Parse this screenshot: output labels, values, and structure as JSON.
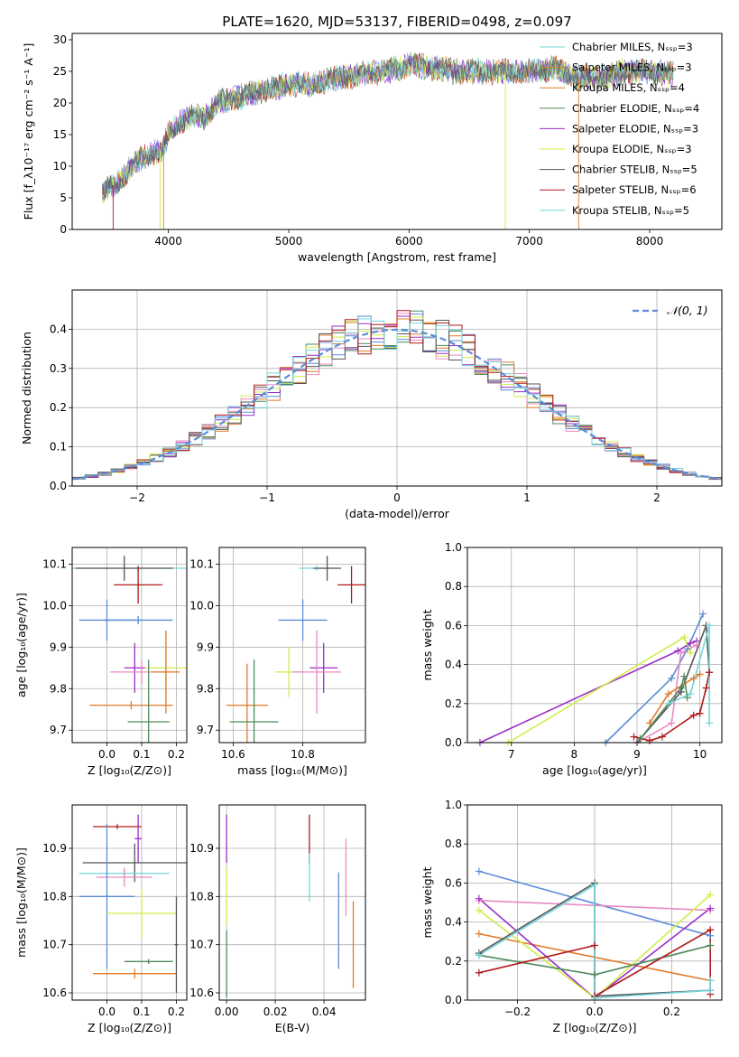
{
  "title": "PLATE=1620, MJD=53137, FIBERID=0498, z=0.097",
  "colors": {
    "blue": "#5b8bd8",
    "orange": "#e07b2a",
    "green": "#4f8a5c",
    "purple": "#9b2ec8",
    "lime": "#d0ec4a",
    "gray": "#555555",
    "red": "#b01a1a",
    "cyan": "#74d6dc",
    "pink": "#e78ac3"
  },
  "chart_data": [
    {
      "type": "line",
      "xlabel": "wavelength [Angstrom, rest frame]",
      "ylabel": "Flux [f_λ10⁻¹⁷ erg cm⁻² s⁻¹ A⁻¹]",
      "xlim": [
        3200,
        8600
      ],
      "ylim": [
        0,
        31
      ],
      "xticks": [
        "4000",
        "5000",
        "6000",
        "7000",
        "8000"
      ],
      "yticks": [
        "0",
        "5",
        "10",
        "15",
        "20",
        "25",
        "30"
      ],
      "legend_position": "top-right",
      "spectrum_envelope": {
        "x": [
          3450,
          3550,
          3650,
          3750,
          3850,
          3950,
          4000,
          4100,
          4200,
          4300,
          4400,
          4600,
          4800,
          5000,
          5200,
          5400,
          5600,
          5800,
          6000,
          6200,
          6400,
          6600,
          6800,
          7000,
          7200,
          7400,
          7600,
          7800,
          8000,
          8200
        ],
        "y": [
          6,
          7,
          9,
          11,
          12,
          12.5,
          15,
          17,
          18,
          17.5,
          20,
          21,
          22,
          23,
          23,
          24,
          24.5,
          25,
          26,
          25.5,
          25,
          25,
          25,
          25,
          25.5,
          24,
          24,
          25,
          25,
          24.5
        ]
      },
      "series": [
        {
          "name": "Chabrier MILES, N_SSP=3"
        },
        {
          "name": "Salpeter MILES, N_SSP=3"
        },
        {
          "name": "Kroupa MILES, N_SSP=4"
        },
        {
          "name": "Chabrier ELODIE, N_SSP=4"
        },
        {
          "name": "Salpeter ELODIE, N_SSP=3"
        },
        {
          "name": "Kroupa ELODIE, N_SSP=3"
        },
        {
          "name": "Chabrier STELIB, N_SSP=5"
        },
        {
          "name": "Salpeter STELIB, N_SSP=6"
        },
        {
          "name": "Kroupa STELIB, N_SSP=5"
        }
      ],
      "legend_labels": [
        "Chabrier MILES, Nₛₛₚ=3",
        "Salpeter MILES, Nₛₛₚ=3",
        "Kroupa MILES, Nₛₛₚ=4",
        "Chabrier ELODIE, Nₛₛₚ=4",
        "Salpeter ELODIE, Nₛₛₚ=3",
        "Kroupa ELODIE, Nₛₛₚ=3",
        "Chabrier STELIB, Nₛₛₚ=5",
        "Salpeter STELIB, Nₛₛₚ=6",
        "Kroupa STELIB, Nₛₛₚ=5"
      ]
    },
    {
      "type": "line",
      "xlabel": "(data-model)/error",
      "ylabel": "Normed distribution",
      "xlim": [
        -2.5,
        2.5
      ],
      "ylim": [
        0,
        0.5
      ],
      "xticks": [
        "−2",
        "−1",
        "0",
        "1",
        "2"
      ],
      "yticks": [
        "0.0",
        "0.1",
        "0.2",
        "0.3",
        "0.4"
      ],
      "grid": true,
      "legend_label": "𝒩(0, 1)",
      "gaussian": {
        "mean": 0,
        "sigma": 1
      }
    },
    {
      "type": "scatter",
      "xlabel": "Z [log₁₀(Z/Z⊙)]",
      "ylabel": "age  [log₁₀(age/yr)]",
      "xlim": [
        -0.1,
        0.23
      ],
      "ylim": [
        9.67,
        10.14
      ],
      "xticks": [
        "0.0",
        "0.1",
        "0.2"
      ],
      "yticks": [
        "9.7",
        "9.8",
        "9.9",
        "10.0",
        "10.1"
      ],
      "grid": true,
      "points": [
        {
          "x": 0.09,
          "y": 10.09,
          "xerr": 0.19,
          "yerr": 0.006,
          "color": "cyan"
        },
        {
          "x": 0.05,
          "y": 10.09,
          "xerr": 0.14,
          "yerr": 0.03,
          "color": "gray"
        },
        {
          "x": 0.09,
          "y": 10.05,
          "xerr": 0.07,
          "yerr": 0.045,
          "color": "red"
        },
        {
          "x": 0.0,
          "y": 9.965,
          "xerr": 0.08,
          "yerr": 0.05,
          "color": "blue"
        },
        {
          "x": 0.09,
          "y": 9.965,
          "xerr": 0.1,
          "yerr": 0.01,
          "color": "blue"
        },
        {
          "x": 0.08,
          "y": 9.85,
          "xerr": 0.03,
          "yerr": 0.06,
          "color": "purple"
        },
        {
          "x": 0.17,
          "y": 9.85,
          "xerr": 0.06,
          "yerr": 0.06,
          "color": "lime"
        },
        {
          "x": 0.1,
          "y": 9.84,
          "xerr": 0.09,
          "yerr": 0.03,
          "color": "pink"
        },
        {
          "x": 0.17,
          "y": 9.84,
          "xerr": 0.04,
          "yerr": 0.1,
          "color": "orange"
        },
        {
          "x": 0.07,
          "y": 9.76,
          "xerr": 0.12,
          "yerr": 0.01,
          "color": "orange"
        },
        {
          "x": 0.12,
          "y": 9.72,
          "xerr": 0.06,
          "yerr": 0.15,
          "color": "green"
        }
      ]
    },
    {
      "type": "scatter",
      "xlabel": "mass [log₁₀(M/M⊙)]",
      "xlim": [
        10.56,
        10.98
      ],
      "ylim": [
        9.67,
        10.14
      ],
      "xticks": [
        "10.6",
        "10.8"
      ],
      "yticks": [
        "9.7",
        "9.8",
        "9.9",
        "10.0",
        "10.1"
      ],
      "grid": true,
      "points": [
        {
          "x": 10.84,
          "y": 10.09,
          "xerr": 0.05,
          "yerr": 0.006,
          "color": "cyan"
        },
        {
          "x": 10.87,
          "y": 10.09,
          "xerr": 0.04,
          "yerr": 0.03,
          "color": "gray"
        },
        {
          "x": 10.94,
          "y": 10.05,
          "xerr": 0.04,
          "yerr": 0.045,
          "color": "red"
        },
        {
          "x": 10.8,
          "y": 9.965,
          "xerr": 0.07,
          "yerr": 0.05,
          "color": "blue"
        },
        {
          "x": 10.86,
          "y": 9.85,
          "xerr": 0.04,
          "yerr": 0.06,
          "color": "purple"
        },
        {
          "x": 10.76,
          "y": 9.84,
          "xerr": 0.04,
          "yerr": 0.06,
          "color": "lime"
        },
        {
          "x": 10.84,
          "y": 9.84,
          "xerr": 0.07,
          "yerr": 0.1,
          "color": "pink"
        },
        {
          "x": 10.64,
          "y": 9.76,
          "xerr": 0.06,
          "yerr": 0.1,
          "color": "orange"
        },
        {
          "x": 10.66,
          "y": 9.72,
          "xerr": 0.07,
          "yerr": 0.15,
          "color": "green"
        }
      ]
    },
    {
      "type": "line",
      "xlabel": "age  [log₁₀(age/yr)]",
      "ylabel": "mass weight",
      "xlim": [
        6.3,
        10.35
      ],
      "ylim": [
        0,
        1.0
      ],
      "xticks": [
        "7",
        "8",
        "9",
        "10"
      ],
      "yticks": [
        "0.0",
        "0.2",
        "0.4",
        "0.6",
        "0.8",
        "1.0"
      ],
      "grid": true,
      "series": [
        {
          "color": "blue",
          "x": [
            8.5,
            9.55,
            9.8,
            10.05
          ],
          "y": [
            0.0,
            0.33,
            0.48,
            0.66
          ]
        },
        {
          "color": "purple",
          "x": [
            6.5,
            9.65,
            9.85,
            9.95
          ],
          "y": [
            0.0,
            0.47,
            0.51,
            0.52
          ]
        },
        {
          "color": "lime",
          "x": [
            6.95,
            9.75,
            9.85
          ],
          "y": [
            0.0,
            0.54,
            0.46
          ]
        },
        {
          "color": "pink",
          "x": [
            9.0,
            9.55,
            9.7,
            9.95
          ],
          "y": [
            0.0,
            0.1,
            0.46,
            0.5
          ]
        },
        {
          "color": "gray",
          "x": [
            9.0,
            9.7,
            10.1,
            10.15
          ],
          "y": [
            0.0,
            0.26,
            0.6,
            0.36
          ]
        },
        {
          "color": "orange",
          "x": [
            9.2,
            9.5,
            9.9,
            10.0
          ],
          "y": [
            0.1,
            0.25,
            0.33,
            0.35
          ]
        },
        {
          "color": "green",
          "x": [
            9.05,
            9.7,
            9.75,
            9.8
          ],
          "y": [
            0.02,
            0.28,
            0.34,
            0.23
          ]
        },
        {
          "color": "red",
          "x": [
            8.95,
            9.2,
            9.4,
            9.9,
            10.0,
            10.1,
            10.15
          ],
          "y": [
            0.03,
            0.01,
            0.03,
            0.14,
            0.15,
            0.28,
            0.36
          ]
        },
        {
          "color": "cyan",
          "x": [
            9.5,
            9.85,
            10.15,
            10.15
          ],
          "y": [
            0.2,
            0.25,
            0.6,
            0.1
          ]
        }
      ]
    },
    {
      "type": "scatter",
      "xlabel": "Z [log₁₀(Z/Z⊙)]",
      "ylabel": "mass [log₁₀(M/M⊙)]",
      "xlim": [
        -0.1,
        0.23
      ],
      "ylim": [
        10.585,
        10.99
      ],
      "xticks": [
        "0.0",
        "0.1",
        "0.2"
      ],
      "yticks": [
        "10.6",
        "10.7",
        "10.8",
        "10.9"
      ],
      "grid": true,
      "points": [
        {
          "x": 0.03,
          "y": 10.945,
          "xerr": 0.07,
          "yerr": 0.005,
          "color": "red"
        },
        {
          "x": 0.09,
          "y": 10.92,
          "xerr": 0.01,
          "yerr": 0.05,
          "color": "purple"
        },
        {
          "x": 0.08,
          "y": 10.87,
          "xerr": 0.15,
          "yerr": 0.04,
          "color": "gray"
        },
        {
          "x": 0.05,
          "y": 10.848,
          "xerr": 0.13,
          "yerr": 0.005,
          "color": "cyan"
        },
        {
          "x": 0.05,
          "y": 10.84,
          "xerr": 0.08,
          "yerr": 0.02,
          "color": "pink"
        },
        {
          "x": 0.0,
          "y": 10.8,
          "xerr": 0.08,
          "yerr": 0.15,
          "color": "blue"
        },
        {
          "x": 0.1,
          "y": 10.765,
          "xerr": 0.1,
          "yerr": 0.05,
          "color": "lime"
        },
        {
          "x": 0.12,
          "y": 10.665,
          "xerr": 0.07,
          "yerr": 0.005,
          "color": "green"
        },
        {
          "x": 0.2,
          "y": 10.7,
          "xerr": 0.005,
          "yerr": 0.1,
          "color": "gray"
        },
        {
          "x": 0.08,
          "y": 10.64,
          "xerr": 0.12,
          "yerr": 0.01,
          "color": "orange"
        }
      ]
    },
    {
      "type": "scatter",
      "xlabel": "E(B-V)",
      "xlim": [
        -0.003,
        0.057
      ],
      "ylim": [
        10.585,
        10.99
      ],
      "xticks": [
        "0.00",
        "0.02",
        "0.04"
      ],
      "yticks": [
        "10.6",
        "10.7",
        "10.8",
        "10.9"
      ],
      "grid": true,
      "points": [
        {
          "x": 0.0,
          "y": 10.92,
          "yerr": 0.05,
          "color": "purple"
        },
        {
          "x": 0.0,
          "y": 10.8,
          "yerr": 0.06,
          "color": "lime"
        },
        {
          "x": 0.0,
          "y": 10.66,
          "yerr": 0.07,
          "color": "green"
        },
        {
          "x": 0.034,
          "y": 10.92,
          "yerr": 0.05,
          "color": "red"
        },
        {
          "x": 0.034,
          "y": 10.84,
          "yerr": 0.05,
          "color": "cyan"
        },
        {
          "x": 0.046,
          "y": 10.75,
          "yerr": 0.1,
          "color": "blue"
        },
        {
          "x": 0.049,
          "y": 10.84,
          "yerr": 0.08,
          "color": "pink"
        },
        {
          "x": 0.052,
          "y": 10.7,
          "yerr": 0.09,
          "color": "orange"
        }
      ]
    },
    {
      "type": "line",
      "xlabel": "Z [log₁₀(Z/Z⊙)]",
      "ylabel": "mass weight",
      "xlim": [
        -0.33,
        0.33
      ],
      "ylim": [
        0,
        1.0
      ],
      "xticks": [
        "−0.2",
        "0.0",
        "0.2"
      ],
      "yticks": [
        "0.0",
        "0.2",
        "0.4",
        "0.6",
        "0.8",
        "1.0"
      ],
      "grid": true,
      "series": [
        {
          "color": "blue",
          "x": [
            -0.3,
            0.3
          ],
          "y": [
            0.66,
            0.33
          ]
        },
        {
          "color": "pink",
          "x": [
            -0.3,
            0.3
          ],
          "y": [
            0.51,
            0.46
          ]
        },
        {
          "color": "orange",
          "x": [
            -0.3,
            0.3
          ],
          "y": [
            0.34,
            0.1
          ]
        },
        {
          "color": "purple",
          "x": [
            -0.3,
            0.0,
            0.3
          ],
          "y": [
            0.52,
            0.01,
            0.47
          ]
        },
        {
          "color": "lime",
          "x": [
            -0.3,
            0.0,
            0.3
          ],
          "y": [
            0.46,
            0.01,
            0.54
          ]
        },
        {
          "color": "green",
          "x": [
            -0.3,
            0.0,
            0.3
          ],
          "y": [
            0.23,
            0.13,
            0.28
          ]
        },
        {
          "color": "gray",
          "x": [
            -0.3,
            0.0,
            0.0,
            0.3
          ],
          "y": [
            0.24,
            0.6,
            0.02,
            0.05
          ]
        },
        {
          "color": "red",
          "x": [
            -0.3,
            0.0,
            0.0,
            0.3,
            0.3
          ],
          "y": [
            0.14,
            0.28,
            0.02,
            0.36,
            0.03
          ]
        },
        {
          "color": "cyan",
          "x": [
            -0.3,
            0.0,
            0.0,
            0.3,
            0.3
          ],
          "y": [
            0.23,
            0.59,
            0.01,
            0.05,
            0.1
          ]
        }
      ]
    }
  ]
}
